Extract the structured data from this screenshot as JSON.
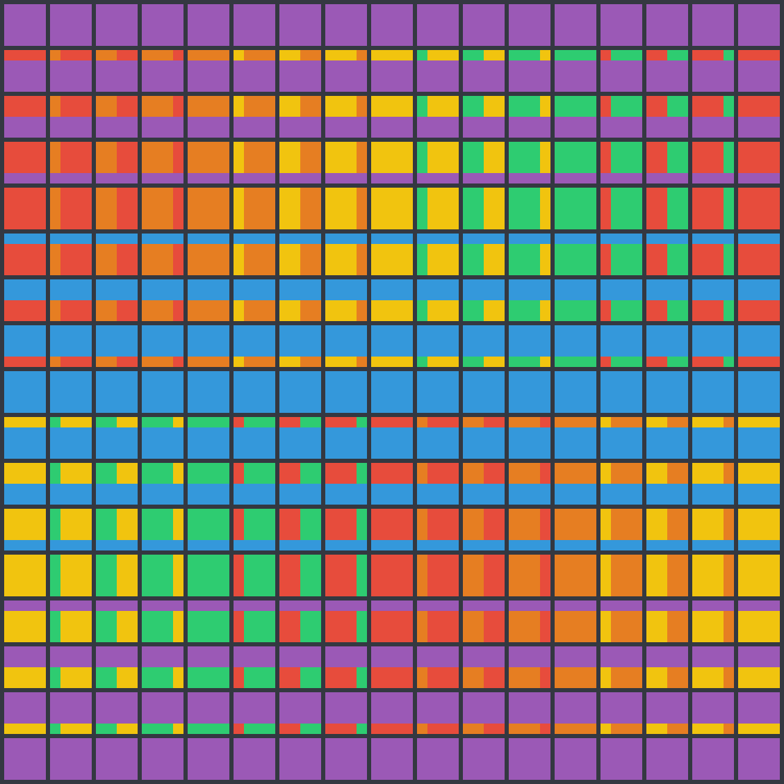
{
  "palette": {
    "background": "#343841",
    "purple": "#9b59b6",
    "red": "#e74c3c",
    "orange": "#e67e22",
    "yellow": "#f1c40f",
    "green": "#2ecc71",
    "blue": "#3498db"
  }
}
